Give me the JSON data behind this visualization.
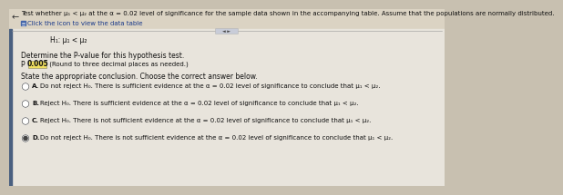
{
  "bg_color": "#c8c0b0",
  "header_bg": "#dbd3c3",
  "body_bg": "#e8e4dc",
  "header_text": "Test whether μ₁ < μ₂ at the α = 0.02 level of significance for the sample data shown in the accompanying table. Assume that the populations are normally distributed.",
  "icon_text": "Click the icon to view the data table",
  "h1_text": "H₁: μ₁ < μ₂",
  "pvalue_label": "Determine the P-value for this hypothesis test.",
  "pvalue_prefix": "P = ",
  "pvalue_box": "0.005",
  "pvalue_suffix": " (Round to three decimal places as needed.)",
  "conclusion_label": "State the appropriate conclusion. Choose the correct answer below.",
  "options": [
    {
      "letter": "A.",
      "text": "Do not reject H₀. There is sufficient evidence at the α = 0.02 level of significance to conclude that μ₁ < μ₂."
    },
    {
      "letter": "B.",
      "text": "Reject H₀. There is sufficient evidence at the α = 0.02 level of significance to conclude that μ₁ < μ₂."
    },
    {
      "letter": "C.",
      "text": "Reject H₀. There is not sufficient evidence at the α = 0.02 level of significance to conclude that μ₁ < μ₂."
    },
    {
      "letter": "D.",
      "text": "Do not reject H₀. There is not sufficient evidence at the α = 0.02 level of significance to conclude that μ₁ < μ₂."
    }
  ],
  "selected_option": "D",
  "text_color": "#111111",
  "link_color": "#1a3a8a",
  "box_fill": "#f0e060",
  "box_edge": "#888866",
  "radio_edge": "#555555",
  "radio_fill": "#444444",
  "arrow_color": "#333333",
  "divider_color": "#999999",
  "icon_color": "#4466aa",
  "header_font_size": 5.0,
  "body_font_size": 5.5,
  "small_font_size": 5.0,
  "option_font_size": 5.0
}
